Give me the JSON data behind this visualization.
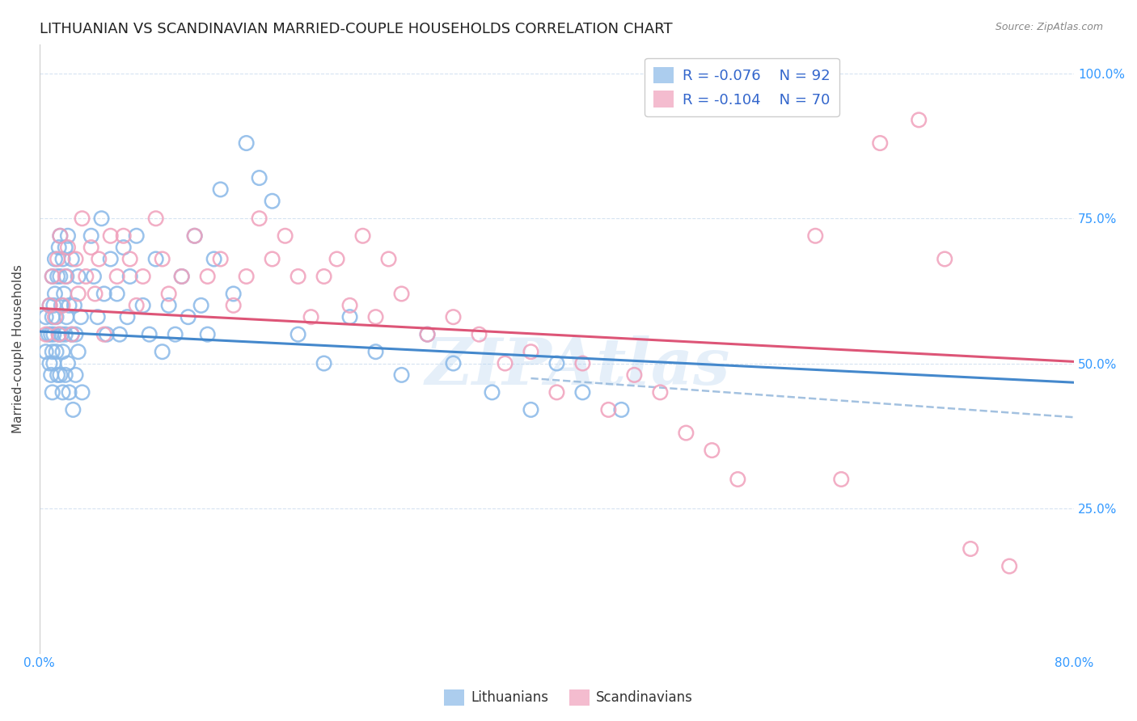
{
  "title": "LITHUANIAN VS SCANDINAVIAN MARRIED-COUPLE HOUSEHOLDS CORRELATION CHART",
  "source": "Source: ZipAtlas.com",
  "ylabel": "Married-couple Households",
  "xmin": 0.0,
  "xmax": 0.8,
  "ymin": 0.0,
  "ymax": 1.05,
  "blue_color": "#89B8E8",
  "pink_color": "#F0A0BB",
  "blue_line_color": "#4488CC",
  "pink_line_color": "#DD5577",
  "dash_line_color": "#99BBDD",
  "watermark": "ZIPAtlas",
  "legend_R_blue": "-0.076",
  "legend_N_blue": "92",
  "legend_R_pink": "-0.104",
  "legend_N_pink": "70",
  "title_fontsize": 13,
  "axis_label_fontsize": 11,
  "tick_fontsize": 11,
  "legend_fontsize": 13
}
